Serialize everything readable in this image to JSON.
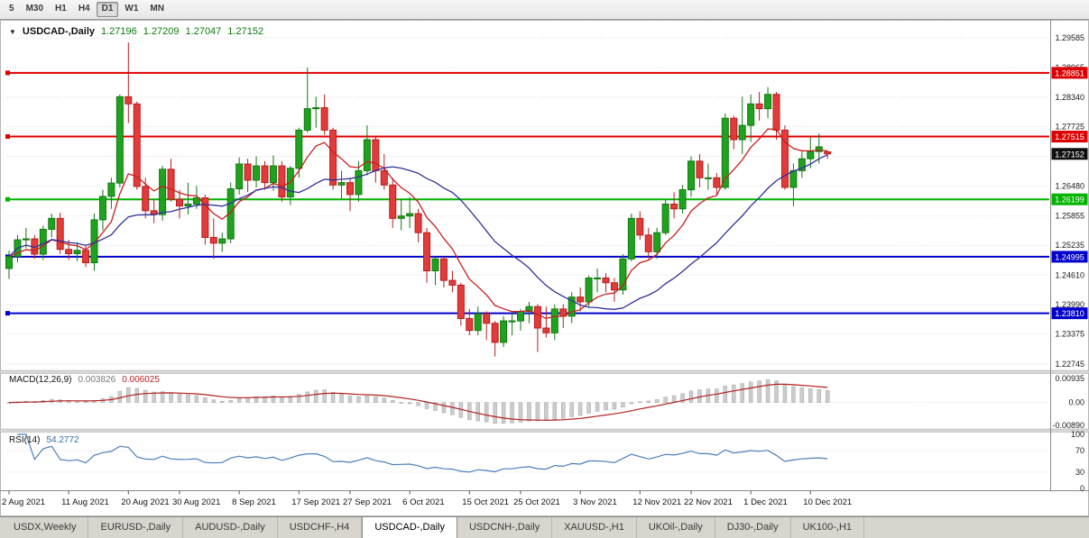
{
  "toolbar": {
    "periods": [
      {
        "label": "5",
        "active": false
      },
      {
        "label": "M30",
        "active": false
      },
      {
        "label": "H1",
        "active": false
      },
      {
        "label": "H4",
        "active": false
      },
      {
        "label": "D1",
        "active": true
      },
      {
        "label": "W1",
        "active": false
      },
      {
        "label": "MN",
        "active": false
      }
    ]
  },
  "chart_header": {
    "menu_icon": "▼",
    "title": "USDCAD-,Daily",
    "open": "1.27196",
    "high": "1.27209",
    "low": "1.27047",
    "close": "1.27152"
  },
  "macd": {
    "label": "MACD(12,26,9)",
    "value_main": "0.003826",
    "value_signal": "0.006025"
  },
  "rsi": {
    "label": "RSI(14)",
    "value": "54.2772"
  },
  "chart_data": {
    "type": "candlestick",
    "symbol": "USDCAD-",
    "timeframe": "Daily",
    "colors": {
      "grid": "#d9d9d9",
      "candle_up": "#1fa31f",
      "candle_up_border": "#127812",
      "candle_down": "#e13b3b",
      "candle_down_border": "#b81e1e",
      "macd_hist": "#cccccc",
      "macd_hist_border": "#a8a8a8",
      "macd_signal": "#b22222",
      "rsi_line": "#4a7ebb"
    },
    "y_axis": {
      "labels": [
        "1.29585",
        "1.28965",
        "1.28340",
        "1.27725",
        "1.27100",
        "1.26480",
        "1.25855",
        "1.25235",
        "1.24610",
        "1.23990",
        "1.23375",
        "1.22745"
      ]
    },
    "levels": [
      {
        "label": "1.28851",
        "value": 1.28851,
        "color": "#dd0000",
        "width": 2
      },
      {
        "label": "1.27515",
        "value": 1.27515,
        "color": "#dd0000",
        "width": 2
      },
      {
        "label": "1.26199",
        "value": 1.26199,
        "color": "#00b300",
        "width": 2
      },
      {
        "label": "1.24995",
        "value": 1.24995,
        "color": "#0000cc",
        "width": 2
      },
      {
        "label": "1.23810",
        "value": 1.2381,
        "color": "#0000cc",
        "width": 2
      }
    ],
    "current": {
      "label": "1.27152",
      "value": 1.27152,
      "color": "#111111"
    },
    "overlays": [
      {
        "name": "ma-fast-line",
        "type": "ema",
        "period": 8,
        "color": "#c62020"
      },
      {
        "name": "ma-slow-line",
        "type": "sma",
        "period": 20,
        "color": "#30309c"
      }
    ],
    "macd": {
      "fast": 12,
      "slow": 26,
      "signal": 9,
      "axis": [
        {
          "text": "0.00935",
          "v": 0.00935
        },
        {
          "text": "0.00",
          "v": 0
        },
        {
          "text": "-0.00890",
          "v": -0.0089
        }
      ]
    },
    "rsi": {
      "period": 14,
      "levels": [
        70,
        30
      ],
      "axis": [
        {
          "text": "100",
          "v": 100
        },
        {
          "text": "70",
          "v": 70
        },
        {
          "text": "30",
          "v": 30
        },
        {
          "text": "0",
          "v": 0
        }
      ]
    },
    "x_axis": {
      "labels": [
        {
          "text": "2 Aug 2021",
          "i": 0
        },
        {
          "text": "11 Aug 2021",
          "i": 7
        },
        {
          "text": "20 Aug 2021",
          "i": 14
        },
        {
          "text": "30 Aug 2021",
          "i": 20
        },
        {
          "text": "8 Sep 2021",
          "i": 27
        },
        {
          "text": "17 Sep 2021",
          "i": 34
        },
        {
          "text": "27 Sep 2021",
          "i": 40
        },
        {
          "text": "6 Oct 2021",
          "i": 47
        },
        {
          "text": "15 Oct 2021",
          "i": 54
        },
        {
          "text": "25 Oct 2021",
          "i": 60
        },
        {
          "text": "3 Nov 2021",
          "i": 67
        },
        {
          "text": "12 Nov 2021",
          "i": 74
        },
        {
          "text": "22 Nov 2021",
          "i": 80
        },
        {
          "text": "1 Dec 2021",
          "i": 87
        },
        {
          "text": "10 Dec 2021",
          "i": 94
        }
      ]
    },
    "candles": [
      [
        1.2475,
        1.2512,
        1.2453,
        1.25
      ],
      [
        1.25,
        1.2545,
        1.2488,
        1.2535
      ],
      [
        1.2535,
        1.256,
        1.2517,
        1.2537
      ],
      [
        1.2537,
        1.2545,
        1.2495,
        1.2505
      ],
      [
        1.2505,
        1.2565,
        1.2493,
        1.2557
      ],
      [
        1.2557,
        1.259,
        1.254,
        1.258
      ],
      [
        1.258,
        1.2592,
        1.2505,
        1.2515
      ],
      [
        1.2515,
        1.2535,
        1.2493,
        1.2506
      ],
      [
        1.2506,
        1.253,
        1.249,
        1.2513
      ],
      [
        1.2513,
        1.2525,
        1.2478,
        1.2487
      ],
      [
        1.2487,
        1.259,
        1.247,
        1.2577
      ],
      [
        1.2577,
        1.264,
        1.2555,
        1.2626
      ],
      [
        1.2626,
        1.2665,
        1.26,
        1.2654
      ],
      [
        1.2654,
        1.284,
        1.2645,
        1.2835
      ],
      [
        1.2835,
        1.2949,
        1.278,
        1.282
      ],
      [
        1.282,
        1.2825,
        1.264,
        1.2647
      ],
      [
        1.2647,
        1.2665,
        1.258,
        1.2596
      ],
      [
        1.2596,
        1.262,
        1.257,
        1.2588
      ],
      [
        1.2588,
        1.269,
        1.2575,
        1.2683
      ],
      [
        1.2683,
        1.2705,
        1.2615,
        1.262
      ],
      [
        1.262,
        1.264,
        1.258,
        1.2606
      ],
      [
        1.2606,
        1.2655,
        1.2588,
        1.261
      ],
      [
        1.261,
        1.2648,
        1.26,
        1.2623
      ],
      [
        1.2623,
        1.263,
        1.2525,
        1.254
      ],
      [
        1.254,
        1.258,
        1.2495,
        1.2528
      ],
      [
        1.2528,
        1.255,
        1.251,
        1.2537
      ],
      [
        1.2537,
        1.2655,
        1.2528,
        1.2642
      ],
      [
        1.2642,
        1.2708,
        1.263,
        1.2694
      ],
      [
        1.2694,
        1.2705,
        1.2635,
        1.266
      ],
      [
        1.266,
        1.271,
        1.2645,
        1.269
      ],
      [
        1.269,
        1.27,
        1.264,
        1.2655
      ],
      [
        1.2655,
        1.2712,
        1.2638,
        1.269
      ],
      [
        1.269,
        1.27,
        1.2615,
        1.2625
      ],
      [
        1.2625,
        1.269,
        1.2608,
        1.2685
      ],
      [
        1.2685,
        1.277,
        1.2665,
        1.2765
      ],
      [
        1.2765,
        1.2896,
        1.276,
        1.281
      ],
      [
        1.281,
        1.2835,
        1.277,
        1.2812
      ],
      [
        1.2812,
        1.284,
        1.2755,
        1.2765
      ],
      [
        1.2765,
        1.277,
        1.264,
        1.265
      ],
      [
        1.265,
        1.268,
        1.262,
        1.2655
      ],
      [
        1.2655,
        1.2665,
        1.2595,
        1.263
      ],
      [
        1.263,
        1.27,
        1.2615,
        1.268
      ],
      [
        1.268,
        1.2775,
        1.267,
        1.2745
      ],
      [
        1.2745,
        1.275,
        1.2655,
        1.268
      ],
      [
        1.268,
        1.2715,
        1.264,
        1.265
      ],
      [
        1.265,
        1.2665,
        1.256,
        1.258
      ],
      [
        1.258,
        1.262,
        1.2555,
        1.2585
      ],
      [
        1.2585,
        1.2625,
        1.256,
        1.259
      ],
      [
        1.259,
        1.26,
        1.253,
        1.255
      ],
      [
        1.255,
        1.256,
        1.2445,
        1.247
      ],
      [
        1.247,
        1.25,
        1.244,
        1.2495
      ],
      [
        1.2495,
        1.25,
        1.2435,
        1.245
      ],
      [
        1.245,
        1.247,
        1.2425,
        1.244
      ],
      [
        1.244,
        1.2445,
        1.2355,
        1.237
      ],
      [
        1.237,
        1.239,
        1.2335,
        1.2345
      ],
      [
        1.2345,
        1.2395,
        1.2335,
        1.238
      ],
      [
        1.238,
        1.2385,
        1.2325,
        1.236
      ],
      [
        1.236,
        1.2365,
        1.229,
        1.232
      ],
      [
        1.232,
        1.2375,
        1.231,
        1.2365
      ],
      [
        1.2365,
        1.2385,
        1.2335,
        1.2365
      ],
      [
        1.2365,
        1.239,
        1.2345,
        1.2385
      ],
      [
        1.2385,
        1.2405,
        1.236,
        1.2395
      ],
      [
        1.2395,
        1.24,
        1.23,
        1.235
      ],
      [
        1.235,
        1.2395,
        1.233,
        1.234
      ],
      [
        1.234,
        1.24,
        1.2325,
        1.239
      ],
      [
        1.239,
        1.24,
        1.235,
        1.2375
      ],
      [
        1.2375,
        1.2425,
        1.236,
        1.2415
      ],
      [
        1.2415,
        1.2435,
        1.2385,
        1.2405
      ],
      [
        1.2405,
        1.246,
        1.2395,
        1.2455
      ],
      [
        1.2455,
        1.2475,
        1.2425,
        1.2455
      ],
      [
        1.2455,
        1.2465,
        1.2425,
        1.2445
      ],
      [
        1.2445,
        1.2455,
        1.2405,
        1.243
      ],
      [
        1.243,
        1.2505,
        1.242,
        1.2495
      ],
      [
        1.2495,
        1.259,
        1.249,
        1.258
      ],
      [
        1.258,
        1.2595,
        1.2535,
        1.2545
      ],
      [
        1.2545,
        1.256,
        1.2495,
        1.251
      ],
      [
        1.251,
        1.256,
        1.2495,
        1.255
      ],
      [
        1.255,
        1.262,
        1.2545,
        1.261
      ],
      [
        1.261,
        1.2635,
        1.258,
        1.26
      ],
      [
        1.26,
        1.265,
        1.259,
        1.264
      ],
      [
        1.264,
        1.271,
        1.2625,
        1.27
      ],
      [
        1.27,
        1.2715,
        1.2645,
        1.2665
      ],
      [
        1.2665,
        1.2695,
        1.264,
        1.2665
      ],
      [
        1.2665,
        1.2675,
        1.263,
        1.2645
      ],
      [
        1.2645,
        1.28,
        1.264,
        1.279
      ],
      [
        1.279,
        1.2795,
        1.2725,
        1.2745
      ],
      [
        1.2745,
        1.2835,
        1.2715,
        1.2775
      ],
      [
        1.2775,
        1.284,
        1.274,
        1.282
      ],
      [
        1.282,
        1.2845,
        1.2785,
        1.281
      ],
      [
        1.281,
        1.2855,
        1.279,
        1.284
      ],
      [
        1.284,
        1.2845,
        1.2745,
        1.2765
      ],
      [
        1.2765,
        1.2775,
        1.264,
        1.2645
      ],
      [
        1.2645,
        1.2695,
        1.2605,
        1.268
      ],
      [
        1.268,
        1.272,
        1.2665,
        1.2705
      ],
      [
        1.2705,
        1.275,
        1.2685,
        1.272
      ],
      [
        1.272,
        1.2758,
        1.2695,
        1.273
      ],
      [
        1.27196,
        1.27209,
        1.27047,
        1.27152
      ]
    ]
  },
  "tabs": [
    {
      "label": "USDX,Weekly",
      "active": false
    },
    {
      "label": "EURUSD-,Daily",
      "active": false
    },
    {
      "label": "AUDUSD-,Daily",
      "active": false
    },
    {
      "label": "USDCHF-,H4",
      "active": false
    },
    {
      "label": "USDCAD-,Daily",
      "active": true
    },
    {
      "label": "USDCNH-,Daily",
      "active": false
    },
    {
      "label": "XAUUSD-,H1",
      "active": false
    },
    {
      "label": "UKOil-,Daily",
      "active": false
    },
    {
      "label": "DJ30-,Daily",
      "active": false
    },
    {
      "label": "UK100-,H1",
      "active": false
    }
  ]
}
